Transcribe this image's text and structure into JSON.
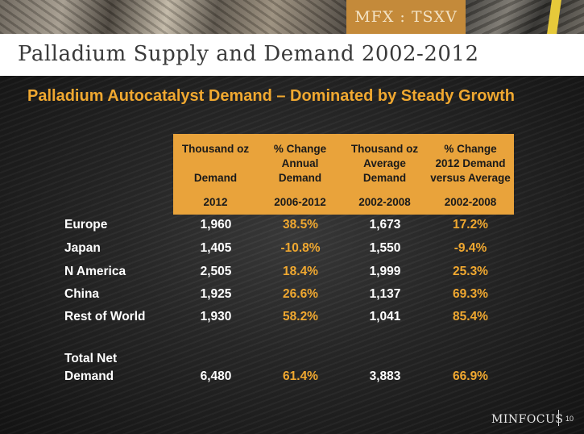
{
  "banner": {
    "tag": "MFX : TSXV"
  },
  "slide": {
    "title": "Palladium Supply and Demand 2002-2012",
    "subtitle": "Palladium Autocatalyst Demand – Dominated by Steady Growth"
  },
  "table": {
    "headers": [
      {
        "l1": "Thousand oz",
        "l2": "",
        "l3": "Demand",
        "l4": "2012"
      },
      {
        "l1": "% Change",
        "l2": "Annual",
        "l3": "Demand",
        "l4": "2006-2012"
      },
      {
        "l1": "Thousand oz",
        "l2": "Average",
        "l3": "Demand",
        "l4": "2002-2008"
      },
      {
        "l1": "% Change",
        "l2": "2012 Demand",
        "l3": "versus Average",
        "l4": "2002-2008"
      }
    ],
    "rows": [
      {
        "label": "Europe",
        "v1": "1,960",
        "v2": "38.5%",
        "v3": "1,673",
        "v4": "17.2%"
      },
      {
        "label": "Japan",
        "v1": "1,405",
        "v2": "-10.8%",
        "v3": "1,550",
        "v4": "-9.4%"
      },
      {
        "label": "N America",
        "v1": "2,505",
        "v2": "18.4%",
        "v3": "1,999",
        "v4": "25.3%"
      },
      {
        "label": "China",
        "v1": "1,925",
        "v2": "26.6%",
        "v3": "1,137",
        "v4": "69.3%"
      },
      {
        "label": "Rest of World",
        "v1": "1,930",
        "v2": "58.2%",
        "v3": "1,041",
        "v4": "85.4%"
      }
    ],
    "total": {
      "label1": "Total Net",
      "label2": "Demand",
      "v1": "6,480",
      "v2": "61.4%",
      "v3": "3,883",
      "v4": "66.9%"
    }
  },
  "footer": {
    "logo": "MINFOCUS",
    "page": "10"
  },
  "colors": {
    "accent": "#e9a33b",
    "highlight_text": "#f0a830"
  }
}
